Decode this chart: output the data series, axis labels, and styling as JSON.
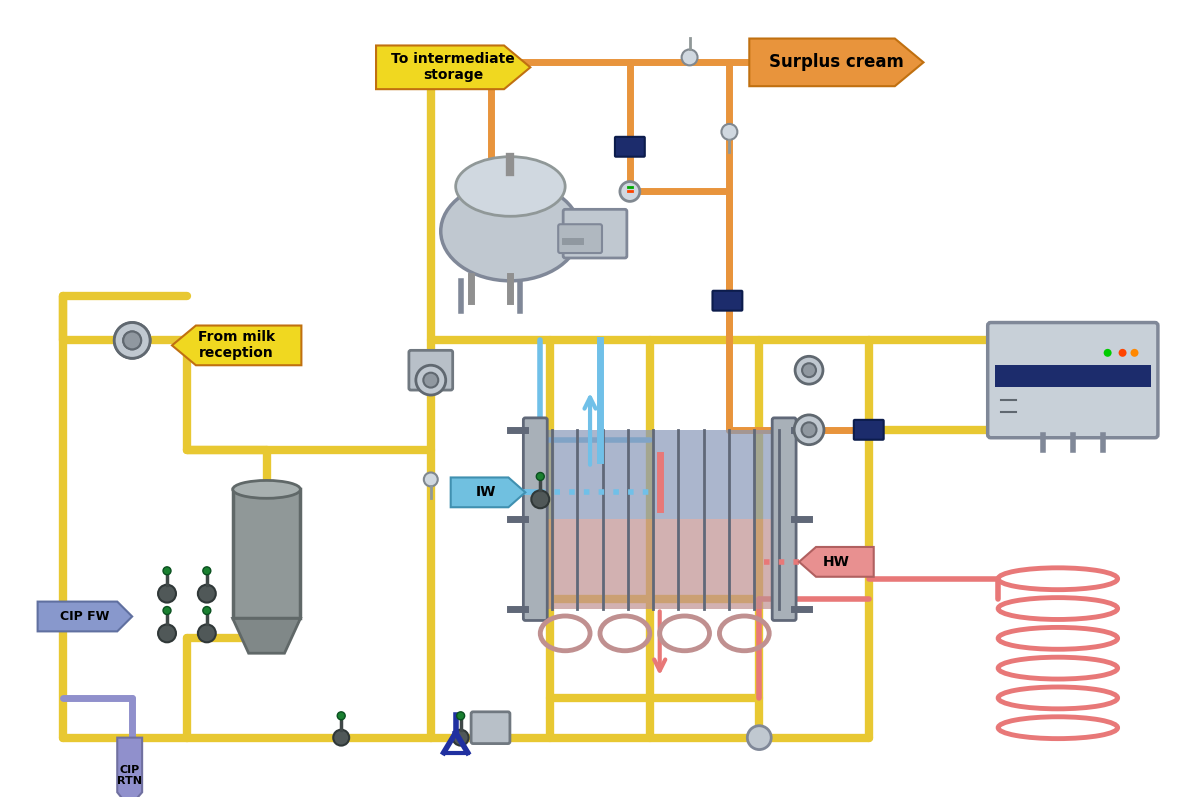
{
  "bg_color": "#ffffff",
  "pipe_yellow": "#E8C832",
  "pipe_orange": "#E8943C",
  "pipe_blue": "#70C0E8",
  "pipe_red": "#E87878",
  "pipe_purple": "#9090CC",
  "dark_blue": "#1C2C6C",
  "gray_equip": "#B8C0C8",
  "gray_dark": "#909898",
  "labels": {
    "to_intermediate": "To intermediate\nstorage",
    "surplus_cream": "Surplus cream",
    "from_milk": "From milk\nreception",
    "cip_fw": "CIP FW",
    "cip_rtn": "CIP RTN",
    "iw": "IW",
    "hw": "HW"
  }
}
